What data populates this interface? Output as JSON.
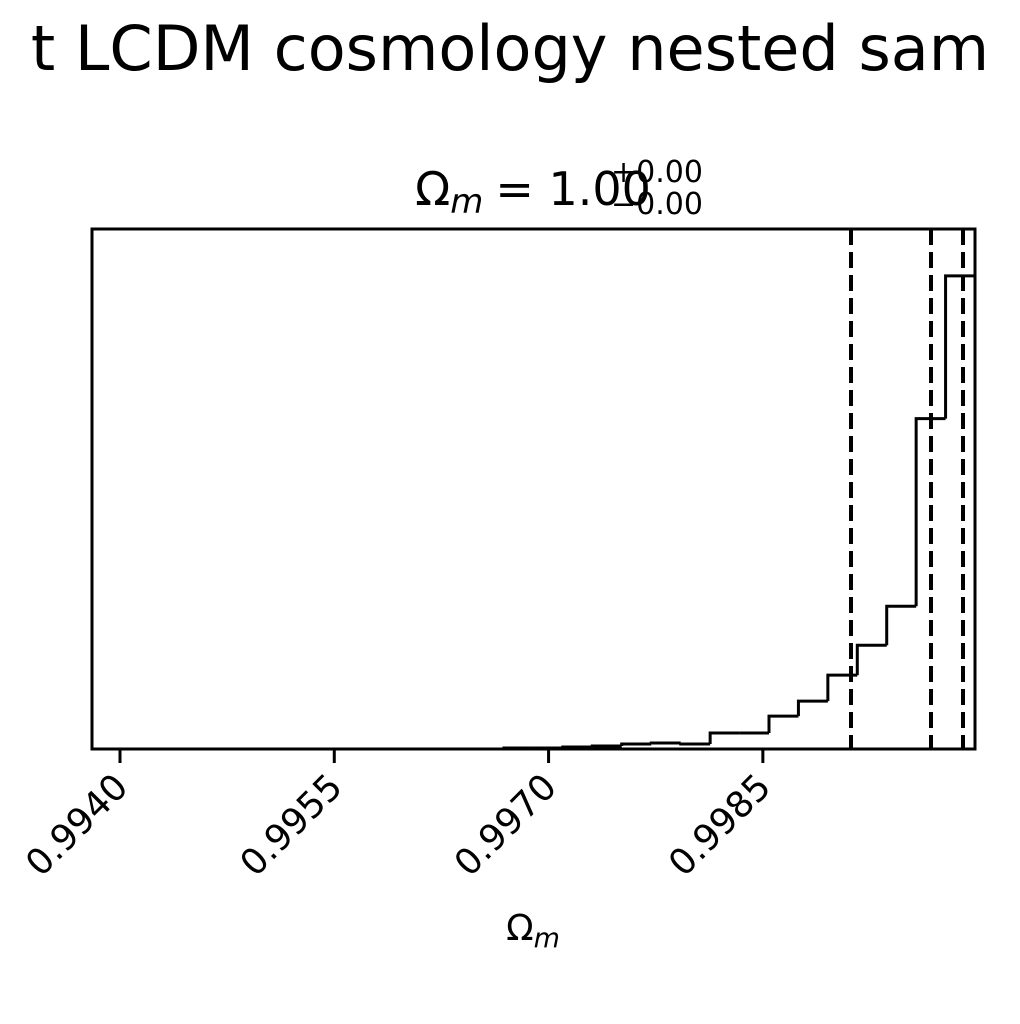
{
  "chart_data": {
    "type": "histogram",
    "title": "t LCDM cosmology nested sam",
    "panel_title": {
      "symbol": "Ω",
      "subscript": "m",
      "rest": "= 1.00",
      "upper": "+0.00",
      "lower": "−0.00"
    },
    "xlabel": {
      "symbol": "Ω",
      "subscript": "m"
    },
    "bins": [
      0.993804,
      0.99401,
      0.994216,
      0.994422,
      0.994628,
      0.994834,
      0.99504,
      0.995246,
      0.995452,
      0.995658,
      0.995864,
      0.99607,
      0.996276,
      0.996482,
      0.996688,
      0.996894,
      0.9971,
      0.997306,
      0.997512,
      0.997719,
      0.997925,
      0.998131,
      0.998337,
      0.998543,
      0.998749,
      0.998955,
      0.999161,
      0.999367,
      0.999573,
      0.999779,
      0.999985
    ],
    "values": [
      0,
      0,
      0,
      0,
      0,
      0,
      0,
      0,
      0,
      0,
      0,
      0,
      0,
      0,
      1,
      1,
      2,
      3,
      5,
      6,
      5,
      16,
      16,
      33,
      48,
      74,
      104,
      143,
      331,
      474
    ],
    "color": "#000000",
    "quantiles": [
      0.999117,
      0.999677,
      0.999901
    ],
    "xlim": [
      0.993804,
      0.999985
    ],
    "ylim": [
      0,
      521
    ],
    "xticks": [
      {
        "value": 0.994,
        "label": "0.9940"
      },
      {
        "value": 0.9955,
        "label": "0.9955"
      },
      {
        "value": 0.997,
        "label": "0.9970"
      },
      {
        "value": 0.9985,
        "label": "0.9985"
      }
    ]
  }
}
